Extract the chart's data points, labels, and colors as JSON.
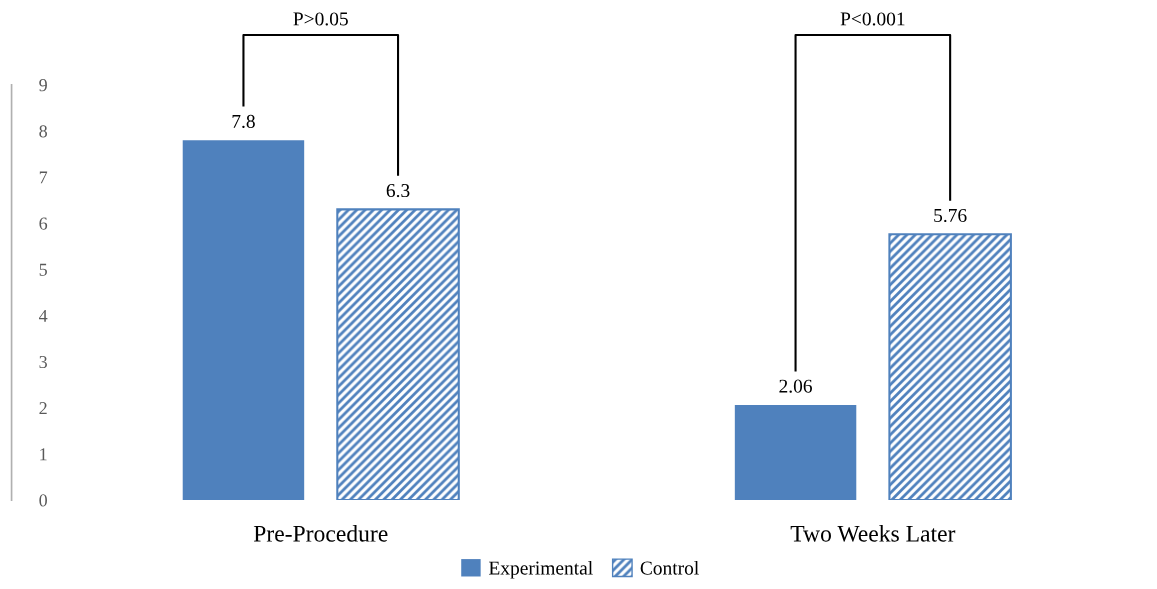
{
  "chart_data": {
    "type": "bar",
    "categories": [
      "Pre-Procedure",
      "Two Weeks Later"
    ],
    "series": [
      {
        "name": "Experimental",
        "color": "#4f81bd",
        "values": [
          7.8,
          2.06
        ]
      },
      {
        "name": "Control",
        "color": "#4f81bd",
        "values": [
          6.3,
          5.76
        ]
      }
    ],
    "ylim": [
      0,
      9
    ],
    "yticks": [
      0,
      1,
      2,
      3,
      4,
      5,
      6,
      7,
      8,
      9
    ],
    "grid": false,
    "legend": "bottom",
    "data_labels": true,
    "annotations": [
      "P>0.05",
      "P<0.001"
    ]
  }
}
